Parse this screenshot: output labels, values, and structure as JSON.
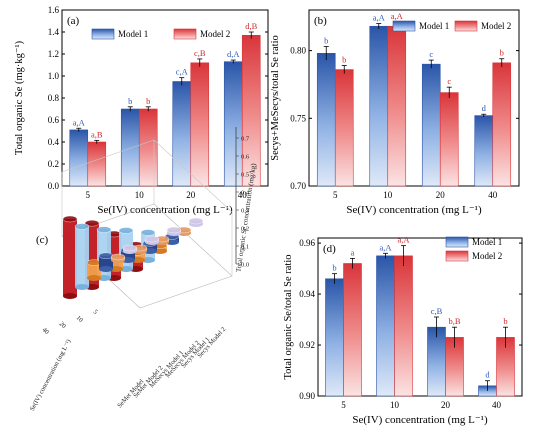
{
  "colors": {
    "model1_top": "#2a55a8",
    "model1_mid": "#8fb1e4",
    "model1_bot": "#dfe9f8",
    "model2_top": "#d9353a",
    "model2_mid": "#f08e8e",
    "model2_bot": "#fbe3e3",
    "letters_m1": "#2f58b8",
    "letters_m2": "#cc2a2a"
  },
  "chart_data": [
    {
      "type": "bar",
      "panel": "(a)",
      "categories": [
        "5",
        "10",
        "20",
        "40"
      ],
      "xlabel": "Se(IV) concentration (mg L⁻¹)",
      "ylabel": "Total organic Se (mg·kg⁻¹)",
      "ylim": [
        0,
        1.6
      ],
      "yticks": [
        "0.0",
        "0.2",
        "0.4",
        "0.6",
        "0.8",
        "1.0",
        "1.2",
        "1.4",
        "1.6"
      ],
      "legend": "top-center",
      "series": [
        {
          "name": "Model 1",
          "values": [
            0.51,
            0.7,
            0.95,
            1.13
          ],
          "errors": [
            0.015,
            0.02,
            0.035,
            0.015
          ],
          "labels": [
            "a,A",
            "b",
            "c,A",
            "d,A"
          ]
        },
        {
          "name": "Model 2",
          "values": [
            0.4,
            0.7,
            1.12,
            1.37
          ],
          "errors": [
            0.015,
            0.02,
            0.035,
            0.03
          ],
          "labels": [
            "a,B",
            "b",
            "c,B",
            "d,B"
          ]
        }
      ]
    },
    {
      "type": "bar",
      "panel": "(b)",
      "categories": [
        "5",
        "10",
        "20",
        "40"
      ],
      "xlabel": "Se(IV) concentration (mg L⁻¹)",
      "ylabel": "Secys+MeSecys/total Se ratio",
      "ylim": [
        0.7,
        0.83
      ],
      "yticks": [
        "0.70",
        "0.75",
        "0.80"
      ],
      "legend": "top-right",
      "series": [
        {
          "name": "Model 1",
          "values": [
            0.798,
            0.818,
            0.79,
            0.752
          ],
          "errors": [
            0.005,
            0.002,
            0.003,
            0.001
          ],
          "labels": [
            "b",
            "a,A",
            "c",
            "d"
          ]
        },
        {
          "name": "Model 2",
          "values": [
            0.786,
            0.818,
            0.769,
            0.791
          ],
          "errors": [
            0.003,
            0.003,
            0.004,
            0.003
          ],
          "labels": [
            "b",
            "a,A",
            "c",
            "b"
          ]
        }
      ]
    },
    {
      "type": "bar3d",
      "panel": "(c)",
      "xlabel": "Se(IV) concentration (mg L⁻¹)",
      "zlabel": "Total organic Se concentration (mg/kg)",
      "x_ticks": [
        "40",
        "20",
        "10",
        "5"
      ],
      "ztick_labels": [
        "0.7",
        "0.6",
        "0.5",
        "0.4",
        "0.3",
        "0.2",
        "0.1",
        "0.0"
      ],
      "y_categories": [
        "SeMet Model",
        "SeMet Model 2",
        "MeSecys Model 1",
        "MeSecys Model 2",
        "Secys Model 1",
        "Secys Model 2"
      ],
      "rows": [
        {
          "group": "SeMet",
          "model": "Model 1",
          "values": [
            0.02,
            0.02,
            0.02,
            0.02
          ]
        },
        {
          "group": "SeMet",
          "model": "Model 2",
          "values": [
            0.02,
            0.02,
            0.02,
            0.02
          ]
        },
        {
          "group": "MeSecys",
          "model": "Model 1",
          "values": [
            0.12,
            0.09,
            0.07,
            0.05
          ]
        },
        {
          "group": "MeSecys",
          "model": "Model 2",
          "values": [
            0.14,
            0.1,
            0.07,
            0.05
          ]
        },
        {
          "group": "Secys",
          "model": "Model 1",
          "values": [
            0.55,
            0.44,
            0.35,
            0.25
          ]
        },
        {
          "group": "Secys",
          "model": "Model 2",
          "values": [
            0.7,
            0.58,
            0.4,
            0.22
          ]
        }
      ]
    },
    {
      "type": "bar",
      "panel": "(d)",
      "categories": [
        "5",
        "10",
        "20",
        "40"
      ],
      "xlabel": "Se(IV) concentration (mg L⁻¹)",
      "ylabel": "Total organic Se/total Se ratio",
      "ylim": [
        0.9,
        0.962
      ],
      "yticks": [
        "0.90",
        "0.92",
        "0.94",
        "0.96"
      ],
      "legend": "top-right",
      "series": [
        {
          "name": "Model 1",
          "values": [
            0.946,
            0.955,
            0.927,
            0.904
          ],
          "errors": [
            0.002,
            0.001,
            0.004,
            0.002
          ],
          "labels": [
            "b",
            "a,A",
            "c,B",
            "d"
          ]
        },
        {
          "name": "Model 2",
          "values": [
            0.952,
            0.955,
            0.923,
            0.923
          ],
          "errors": [
            0.002,
            0.004,
            0.004,
            0.004
          ],
          "labels": [
            "a",
            "a,A",
            "b,B",
            "b"
          ]
        }
      ]
    }
  ]
}
